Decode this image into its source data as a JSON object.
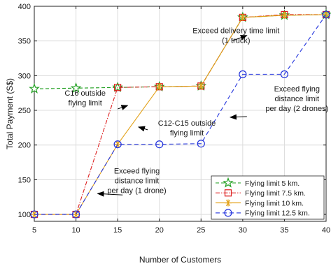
{
  "chart_data": {
    "type": "line",
    "title": "",
    "xlabel": "Number of Customers",
    "ylabel": "Total Payment (S$)",
    "x": [
      5,
      10,
      15,
      20,
      25,
      30,
      35,
      40
    ],
    "xlim": [
      5,
      40
    ],
    "ylim": [
      90,
      400
    ],
    "xticks": [
      "5",
      "10",
      "15",
      "20",
      "25",
      "30",
      "35",
      "40"
    ],
    "yticks": [
      "100",
      "150",
      "200",
      "250",
      "300",
      "350",
      "400"
    ],
    "grid": true,
    "legend_position": "bottom-right",
    "series": [
      {
        "name": "Flying limit 5 km.",
        "values": [
          281,
          282,
          283,
          284,
          285,
          384,
          387,
          388
        ],
        "color": "#1e9e1e",
        "dash": "5,3",
        "marker": "star"
      },
      {
        "name": "Flying limit 7.5 km.",
        "values": [
          100,
          100,
          283,
          284,
          285,
          384,
          388,
          388
        ],
        "color": "#dd1f1f",
        "dash": "6,2,1.5,2",
        "marker": "square"
      },
      {
        "name": "Flying limit 10 km.",
        "values": [
          100,
          100,
          201,
          284,
          285,
          384,
          387,
          388
        ],
        "color": "#e3a21a",
        "dash": "",
        "marker": "asterisk"
      },
      {
        "name": "Flying limit 12.5 km.",
        "values": [
          100,
          100,
          201,
          201,
          202,
          302,
          302,
          388
        ],
        "color": "#2233dd",
        "dash": "6,4",
        "marker": "circle"
      }
    ],
    "annotations": [
      {
        "lines": [
          "Exceed delivery time limit",
          "(1 truck)"
        ],
        "text_at": [
          29.2,
          358
        ],
        "arrow_from": [
          28.7,
          350
        ],
        "arrow_to": [
          30.5,
          358
        ]
      },
      {
        "lines": [
          "Exceed flying",
          "distance limit",
          "per day (2 drones)"
        ],
        "text_at": [
          36.5,
          267
        ],
        "arrow_from": [
          30.5,
          241
        ],
        "arrow_to": [
          28.5,
          240
        ]
      },
      {
        "lines": [
          "C16  outside",
          "flying limit"
        ],
        "text_at": [
          11.1,
          268
        ],
        "arrow_from": [
          15,
          252
        ],
        "arrow_to": [
          16.2,
          257
        ]
      },
      {
        "lines": [
          "C12-C15  outside",
          "flying limit"
        ],
        "text_at": [
          23.3,
          225
        ],
        "arrow_from": [
          18.6,
          222
        ],
        "arrow_to": [
          17.5,
          226
        ]
      },
      {
        "lines": [
          "Exceed flying",
          "distance limit",
          "per day (1 drone)"
        ],
        "text_at": [
          17.3,
          149
        ],
        "arrow_from": [
          15.6,
          128
        ],
        "arrow_to": [
          12.6,
          130
        ]
      }
    ]
  }
}
